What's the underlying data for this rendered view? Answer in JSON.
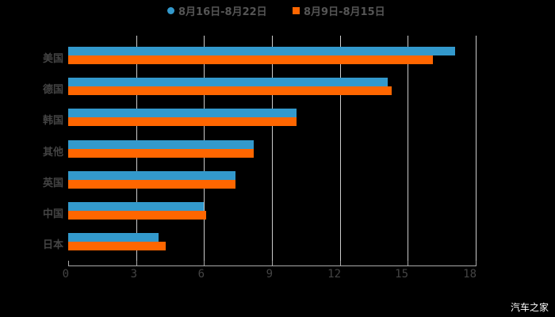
{
  "chart_data": {
    "type": "bar",
    "orientation": "horizontal",
    "title": "",
    "categories": [
      "美国",
      "德国",
      "韩国",
      "其他",
      "英国",
      "中国",
      "日本"
    ],
    "series": [
      {
        "name": "8月16日-8月22日",
        "color": "#3399cc",
        "values": [
          17.1,
          14.1,
          10.1,
          8.2,
          7.4,
          6.0,
          4.0
        ]
      },
      {
        "name": "8月9日-8月15日",
        "color": "#ff6600",
        "values": [
          16.1,
          14.3,
          10.1,
          8.2,
          7.4,
          6.1,
          4.3
        ]
      }
    ],
    "xlabel": "",
    "ylabel": "",
    "xlim": [
      0,
      18
    ],
    "xticks": [
      "0",
      "3",
      "6",
      "9",
      "12",
      "15",
      "18"
    ],
    "grid": true,
    "legend_position": "top"
  },
  "legend": {
    "series1": "8月16日-8月22日",
    "series2": "8月9日-8月15日"
  },
  "watermark": "汽车之家"
}
